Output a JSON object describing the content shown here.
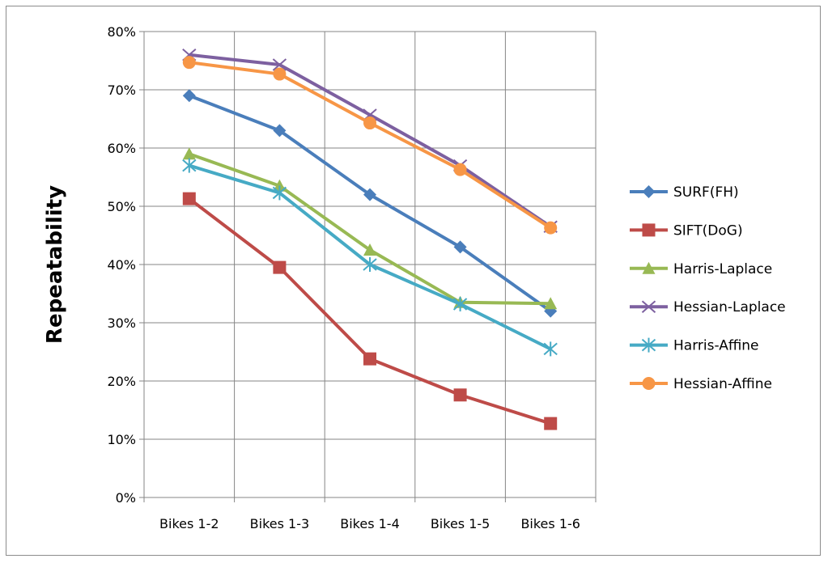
{
  "chart_data": {
    "type": "line",
    "title": "",
    "xlabel": "",
    "ylabel": "Repeatability",
    "ylim": [
      0,
      0.8
    ],
    "yticks": [
      0,
      0.1,
      0.2,
      0.3,
      0.4,
      0.5,
      0.6,
      0.7,
      0.8
    ],
    "ytick_labels": [
      "0%",
      "10%",
      "20%",
      "30%",
      "40%",
      "50%",
      "60%",
      "70%",
      "80%"
    ],
    "categories": [
      "Bikes 1-2",
      "Bikes 1-3",
      "Bikes 1-4",
      "Bikes 1-5",
      "Bikes 1-6"
    ],
    "grid": true,
    "legend_position": "right",
    "series": [
      {
        "name": "SURF(FH)",
        "color": "#4a7ebb",
        "marker": "diamond",
        "values": [
          0.69,
          0.63,
          0.52,
          0.43,
          0.32
        ]
      },
      {
        "name": "SIFT(DoG)",
        "color": "#be4b48",
        "marker": "square",
        "values": [
          0.513,
          0.395,
          0.238,
          0.176,
          0.127
        ]
      },
      {
        "name": "Harris-Laplace",
        "color": "#98b954",
        "marker": "triangle",
        "values": [
          0.59,
          0.535,
          0.425,
          0.335,
          0.333
        ]
      },
      {
        "name": "Hessian-Laplace",
        "color": "#7d60a0",
        "marker": "x",
        "values": [
          0.76,
          0.743,
          0.657,
          0.57,
          0.465
        ]
      },
      {
        "name": "Harris-Affine",
        "color": "#46aac5",
        "marker": "star",
        "values": [
          0.57,
          0.523,
          0.4,
          0.332,
          0.255
        ]
      },
      {
        "name": "Hessian-Affine",
        "color": "#f79646",
        "marker": "circle",
        "values": [
          0.747,
          0.727,
          0.643,
          0.563,
          0.463
        ]
      }
    ]
  }
}
